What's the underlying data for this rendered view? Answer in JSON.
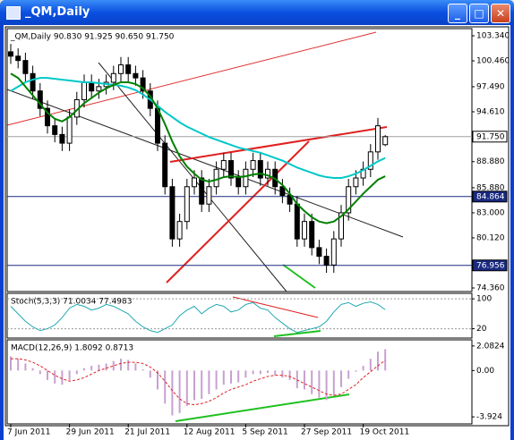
{
  "window": {
    "title": "_QM,Daily"
  },
  "chart_data": [
    {
      "type": "candlestick",
      "title": "_QM,Daily  90.830 91.925 90.650 91.750",
      "categories": [
        "7 Jun 2011",
        null,
        null,
        null,
        null,
        null,
        null,
        null,
        "29 Jun 2011",
        null,
        null,
        null,
        null,
        null,
        null,
        null,
        "21 Jul 2011",
        null,
        null,
        null,
        null,
        null,
        null,
        null,
        "12 Aug 2011",
        null,
        null,
        null,
        null,
        null,
        null,
        null,
        "5 Sep 2011",
        null,
        null,
        null,
        null,
        null,
        null,
        null,
        "27 Sep 2011",
        null,
        null,
        null,
        null,
        null,
        null,
        null,
        "19 Oct 2011",
        null,
        null,
        null
      ],
      "open": [
        101.5,
        101,
        100.5,
        99,
        97,
        95,
        93,
        92,
        91,
        94,
        96,
        98,
        97,
        97.5,
        98,
        99,
        100,
        99,
        98.5,
        97,
        95,
        91,
        86,
        80,
        82,
        86,
        87,
        84,
        86,
        88,
        89,
        87,
        86,
        88,
        89,
        87,
        88,
        86,
        85,
        84,
        80,
        82,
        79,
        78,
        77,
        80,
        83,
        86,
        87,
        88,
        90,
        90.83
      ],
      "high": [
        102.4,
        101.9,
        101.4,
        99.9,
        97.9,
        95.9,
        93.9,
        92.9,
        94.9,
        96.9,
        98.9,
        98.9,
        98.4,
        98.9,
        99.9,
        100.9,
        100.9,
        99.9,
        99.4,
        97.9,
        95.9,
        91.9,
        86.9,
        82.9,
        86.9,
        87.9,
        87.9,
        86.9,
        88.9,
        89.9,
        89.9,
        87.9,
        88.9,
        89.9,
        89.9,
        88.9,
        88.9,
        86.9,
        85.9,
        84.9,
        82.9,
        82.9,
        79.9,
        78.9,
        80.9,
        83.9,
        86.9,
        87.9,
        88.9,
        90.9,
        93.9,
        91.925
      ],
      "low": [
        100.1,
        99.6,
        98.1,
        96.1,
        94.1,
        92.1,
        91.1,
        90.1,
        90.1,
        93.1,
        95.1,
        96.1,
        96.1,
        96.6,
        97.1,
        98.1,
        98.1,
        97.6,
        96.1,
        94.1,
        90.1,
        85.1,
        79.1,
        79.1,
        81.1,
        85.1,
        83.1,
        83.1,
        85.1,
        87.1,
        86.1,
        85.1,
        85.1,
        87.1,
        86.1,
        86.1,
        85.1,
        84.1,
        83.1,
        79.1,
        79.1,
        78.1,
        77.1,
        76.1,
        76.1,
        79.1,
        82.1,
        85.1,
        86.1,
        87.1,
        89.1,
        90.65
      ],
      "close": [
        101,
        100.5,
        99,
        97,
        95,
        93,
        92,
        91,
        94,
        96,
        98,
        97,
        97.5,
        98,
        99,
        100,
        99,
        98.5,
        97,
        95,
        91,
        86,
        80,
        82,
        86,
        87,
        84,
        86,
        88,
        89,
        87,
        86,
        88,
        89,
        87,
        88,
        86,
        85,
        84,
        80,
        82,
        79,
        78,
        77,
        80,
        83,
        86,
        87,
        88,
        90,
        93,
        91.75
      ],
      "series": [
        {
          "color": "#00c8c8",
          "values": [
            97,
            97.5,
            98,
            98.3,
            98.5,
            98.5,
            98.4,
            98.3,
            98.2,
            98.1,
            98,
            98,
            97.9,
            97.8,
            97.7,
            97.6,
            97.4,
            97.1,
            96.6,
            96,
            95.3,
            94.6,
            94,
            93.4,
            92.9,
            92.5,
            92.1,
            91.7,
            91.4,
            91.1,
            90.8,
            90.5,
            90.3,
            90.1,
            89.9,
            89.6,
            89.3,
            89,
            88.6,
            88.2,
            87.9,
            87.6,
            87.3,
            87.1,
            87,
            87,
            87.2,
            87.5,
            87.9,
            88.4,
            88.9,
            89.3
          ]
        },
        {
          "color": "#008000",
          "values": [
            99,
            98.5,
            97.5,
            96.5,
            95.5,
            94.5,
            93.8,
            93.5,
            94,
            94.8,
            95.6,
            96.2,
            96.8,
            97.3,
            97.7,
            98,
            98,
            97.8,
            97.3,
            96.4,
            95,
            93.2,
            91.2,
            89.5,
            88.3,
            87.5,
            86.8,
            86.6,
            86.8,
            87.1,
            87.2,
            87.1,
            87.2,
            87.4,
            87.5,
            87.3,
            86.9,
            86.2,
            85.2,
            84,
            83.2,
            82.5,
            82,
            81.8,
            82,
            82.6,
            83.4,
            84.3,
            85.2,
            86,
            86.8,
            87.2
          ]
        }
      ],
      "ylim": [
        73.95,
        103.96
      ],
      "yticks": [
        {
          "value": 103.34,
          "label": "103.340"
        },
        {
          "value": 100.46,
          "label": "100.460"
        },
        {
          "value": 97.49,
          "label": "97.490"
        },
        {
          "value": 94.61,
          "label": "94.610"
        },
        {
          "value": 88.88,
          "label": "88.880"
        },
        {
          "value": 85.88,
          "label": "85.880"
        },
        {
          "value": 83,
          "label": "83.000"
        },
        {
          "value": 80.12,
          "label": "80.120"
        },
        {
          "value": 74.36,
          "label": "74.360"
        }
      ],
      "hlines": [
        {
          "value": 91.75,
          "label": "91.750",
          "color": "#a0a0a0"
        },
        {
          "value": 84.864,
          "label": "84.864",
          "color": "#1a2a80"
        },
        {
          "value": 76.956,
          "label": "76.956",
          "color": "#1a2a80"
        }
      ]
    },
    {
      "type": "line",
      "title": "Stoch(5,3,3) 71.0034 77.4983",
      "series": [
        {
          "color": "#20a8b0",
          "values": [
            80,
            60,
            40,
            25,
            15,
            20,
            30,
            50,
            75,
            85,
            80,
            70,
            75,
            85,
            80,
            70,
            60,
            40,
            25,
            15,
            10,
            20,
            30,
            55,
            70,
            80,
            60,
            75,
            85,
            80,
            65,
            70,
            85,
            90,
            75,
            70,
            50,
            35,
            20,
            10,
            15,
            20,
            25,
            40,
            65,
            85,
            90,
            80,
            88,
            92,
            85,
            71
          ]
        }
      ],
      "ylim": [
        -5,
        110
      ],
      "yticks": [
        100,
        20
      ],
      "grid": true
    },
    {
      "type": "macd",
      "title": "MACD(12,26,9) 1.8092 0.8713",
      "series": [
        {
          "color": "#c8a0d0",
          "style": "bar",
          "values": [
            1.2,
            1.0,
            0.6,
            0.2,
            -0.3,
            -0.8,
            -1.1,
            -1.2,
            -0.8,
            -0.3,
            0.2,
            0.4,
            0.5,
            0.6,
            0.8,
            1.0,
            0.9,
            0.6,
            0.1,
            -0.6,
            -1.6,
            -2.8,
            -3.8,
            -3.6,
            -3.0,
            -2.5,
            -2.4,
            -2.0,
            -1.6,
            -1.2,
            -1.1,
            -1.0,
            -0.6,
            -0.3,
            -0.3,
            -0.2,
            -0.4,
            -0.6,
            -0.8,
            -1.5,
            -1.6,
            -2.0,
            -2.3,
            -2.5,
            -2.1,
            -1.4,
            -0.7,
            -0.1,
            0.4,
            1.0,
            1.6,
            1.81
          ]
        },
        {
          "color": "#e02020",
          "style": "dashed",
          "values": [
            1.0,
            1.0,
            0.9,
            0.7,
            0.4,
            0.0,
            -0.4,
            -0.7,
            -0.9,
            -0.8,
            -0.6,
            -0.3,
            0.0,
            0.2,
            0.4,
            0.6,
            0.7,
            0.7,
            0.6,
            0.3,
            -0.2,
            -0.9,
            -1.7,
            -2.4,
            -2.8,
            -2.9,
            -2.8,
            -2.6,
            -2.3,
            -1.9,
            -1.6,
            -1.4,
            -1.2,
            -0.9,
            -0.7,
            -0.5,
            -0.4,
            -0.4,
            -0.5,
            -0.8,
            -1.1,
            -1.4,
            -1.7,
            -2.0,
            -2.1,
            -2.0,
            -1.6,
            -1.2,
            -0.6,
            -0.1,
            0.4,
            0.87
          ]
        }
      ],
      "ylim": [
        -4.52,
        2.45
      ],
      "yticks": [
        2.0824,
        {
          "value": 0,
          "label": "0.00"
        },
        -3.924
      ]
    }
  ]
}
